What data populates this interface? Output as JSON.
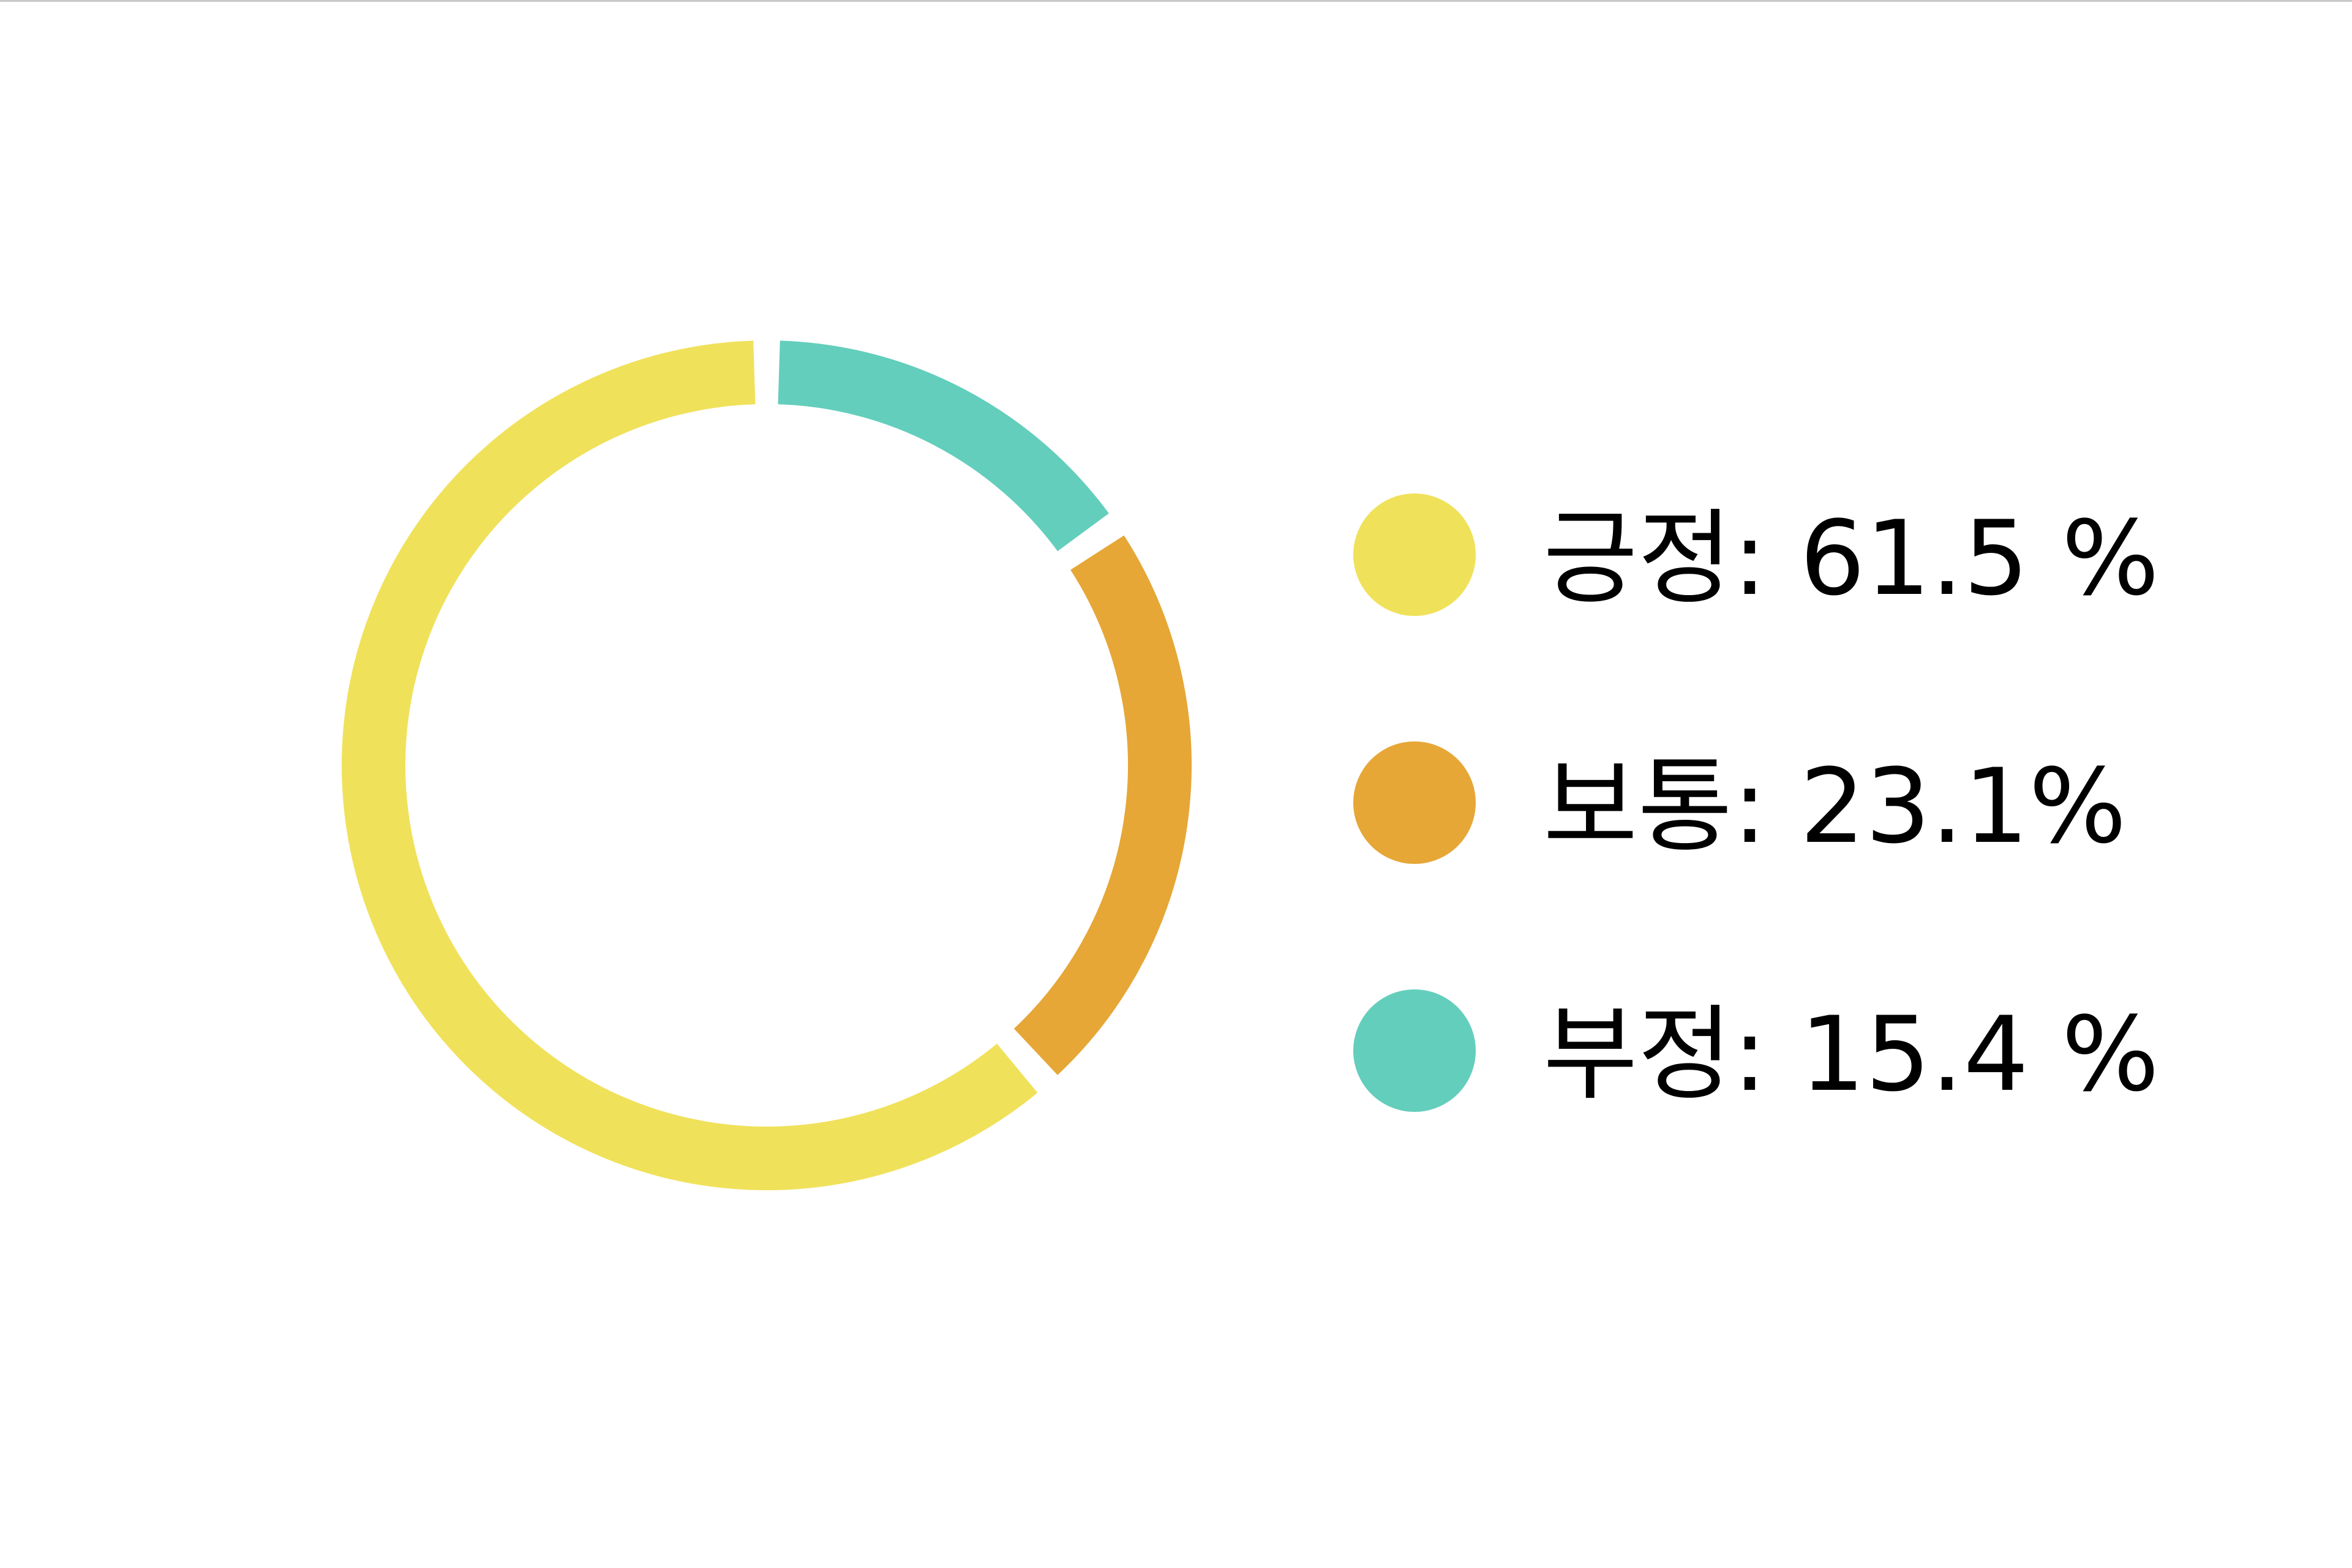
{
  "chart_data": {
    "type": "pie",
    "categories": [
      "긍정",
      "보통",
      "부정"
    ],
    "values": [
      61.5,
      23.1,
      15.4
    ],
    "colors": [
      "#f0e15a",
      "#e6a737",
      "#63cebc"
    ],
    "legend_labels": [
      "긍정: 61.5 %",
      "보통: 23.1%",
      "부정: 15.4 %"
    ],
    "legend_position": "right",
    "donut": true,
    "start": "top, clockwise, last slice first"
  }
}
